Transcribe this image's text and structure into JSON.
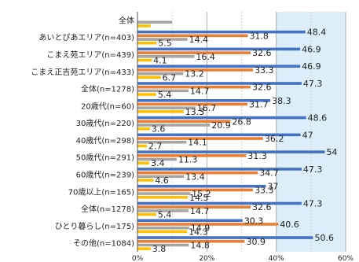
{
  "chart_data": {
    "type": "bar",
    "orientation": "horizontal",
    "categories": [
      "全体",
      "あいとぴあエリア(n=403)",
      "こまえ苑エリア(n=439)",
      "こまえ正吉苑エリア(n=433)",
      "全体(n=1278)",
      "20歳代(n=60)",
      "30歳代(n=220)",
      "40歳代(n=298)",
      "50歳代(n=291)",
      "60歳代(n=239)",
      "70歳以上(n=165)",
      "全体(n=1278)",
      "ひとり暮らし(n=175)",
      "その他(n=1084)"
    ],
    "series": [
      {
        "color": "#4472c4",
        "values": [
          null,
          48.4,
          46.9,
          46.9,
          47.3,
          38.3,
          48.6,
          47,
          54,
          47.3,
          37,
          47.3,
          30.3,
          50.6
        ]
      },
      {
        "color": "#ed7d31",
        "values": [
          null,
          31.8,
          32.6,
          33.3,
          32.6,
          31.7,
          26.8,
          36.2,
          31.3,
          34.7,
          33.3,
          32.6,
          40.6,
          30.9
        ]
      },
      {
        "color": "#a5a5a5",
        "values": [
          10,
          14.4,
          16.4,
          13.2,
          14.7,
          16.7,
          20.9,
          14.1,
          11.3,
          13.4,
          15.2,
          14.7,
          14.9,
          14.8
        ]
      },
      {
        "color": "#ffc000",
        "values": [
          3.8,
          5.5,
          4.1,
          6.7,
          5.4,
          13.3,
          3.6,
          2.7,
          3.4,
          4.6,
          14.5,
          5.4,
          14.3,
          3.8
        ]
      }
    ],
    "x_ticks": [
      "0%",
      "20%",
      "40%",
      "60%"
    ],
    "xlim": [
      0,
      60
    ],
    "grid": true,
    "plot_background": "#dbeef9",
    "shaded_region_start": 40
  }
}
